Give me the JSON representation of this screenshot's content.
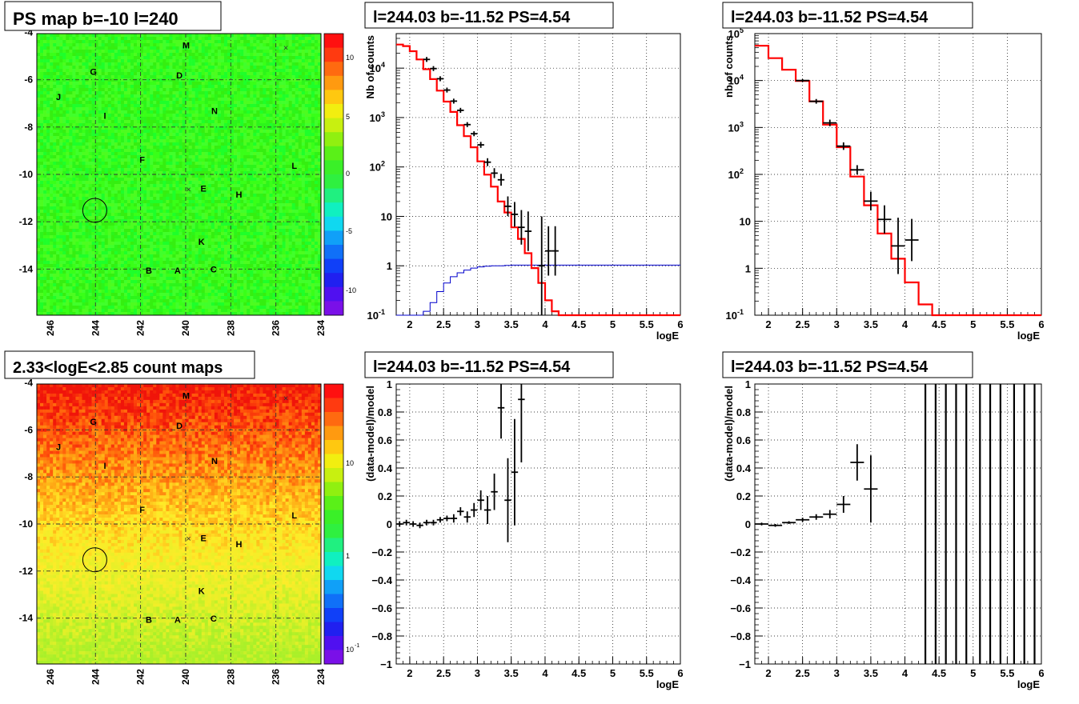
{
  "colors": {
    "red": "#ff0000",
    "blue": "#0000cc",
    "black": "#000000",
    "grid": "#000000"
  },
  "maps": [
    {
      "id": "map1",
      "title": "PS map b=-10 l=240",
      "kind": "ps",
      "yticks": [
        "-4",
        "-6",
        "-8",
        "-10",
        "-12",
        "-14"
      ],
      "xticks": [
        "246",
        "244",
        "242",
        "240",
        "238",
        "236",
        "234"
      ],
      "palette_labels": [
        "10",
        "5",
        "0",
        "-5",
        "-10"
      ],
      "markers": [
        {
          "label": "M",
          "l": 239.98,
          "b": -4.54
        },
        {
          "label": "G",
          "l": 244.09,
          "b": -5.65
        },
        {
          "label": "D",
          "l": 240.28,
          "b": -5.81
        },
        {
          "label": "J",
          "l": 245.64,
          "b": -6.72
        },
        {
          "label": "N",
          "l": 238.72,
          "b": -7.32
        },
        {
          "label": "I",
          "l": 243.58,
          "b": -7.52
        },
        {
          "label": "F",
          "l": 241.93,
          "b": -9.38
        },
        {
          "label": "L",
          "l": 235.18,
          "b": -9.63
        },
        {
          "label": "E",
          "l": 239.21,
          "b": -10.6
        },
        {
          "label": "H",
          "l": 237.64,
          "b": -10.85
        },
        {
          "label": "K",
          "l": 239.3,
          "b": -12.84
        },
        {
          "label": "B",
          "l": 241.63,
          "b": -14.06
        },
        {
          "label": "A",
          "l": 240.36,
          "b": -14.06
        },
        {
          "label": "C",
          "l": 238.76,
          "b": -14.01
        }
      ],
      "crosses": [
        {
          "l": 235.56,
          "b": -4.64
        },
        {
          "l": 239.87,
          "b": -10.62
        }
      ],
      "circle": {
        "l": 244.03,
        "b": -11.52
      }
    },
    {
      "id": "map2",
      "title": "2.33<logE<2.85 count maps",
      "kind": "count",
      "yticks": [
        "-4",
        "-6",
        "-8",
        "-10",
        "-12",
        "-14"
      ],
      "xticks": [
        "246",
        "244",
        "242",
        "240",
        "238",
        "236",
        "234"
      ],
      "palette_labels": [
        "10",
        "1",
        "10",
        "-1"
      ],
      "markers": [
        {
          "label": "M",
          "l": 239.98,
          "b": -4.54
        },
        {
          "label": "G",
          "l": 244.09,
          "b": -5.65
        },
        {
          "label": "D",
          "l": 240.28,
          "b": -5.81
        },
        {
          "label": "J",
          "l": 245.64,
          "b": -6.72
        },
        {
          "label": "N",
          "l": 238.72,
          "b": -7.32
        },
        {
          "label": "I",
          "l": 243.58,
          "b": -7.52
        },
        {
          "label": "F",
          "l": 241.93,
          "b": -9.38
        },
        {
          "label": "L",
          "l": 235.18,
          "b": -9.63
        },
        {
          "label": "E",
          "l": 239.21,
          "b": -10.6
        },
        {
          "label": "H",
          "l": 237.64,
          "b": -10.85
        },
        {
          "label": "K",
          "l": 239.3,
          "b": -12.84
        },
        {
          "label": "B",
          "l": 241.63,
          "b": -14.06
        },
        {
          "label": "A",
          "l": 240.36,
          "b": -14.06
        },
        {
          "label": "C",
          "l": 238.76,
          "b": -14.01
        }
      ],
      "crosses": [
        {
          "l": 235.56,
          "b": -4.64
        },
        {
          "l": 239.87,
          "b": -10.62
        }
      ],
      "circle": {
        "l": 244.03,
        "b": -11.52
      }
    }
  ],
  "chart_data": [
    {
      "type": "line",
      "title": "l=244.03 b=-11.52 PS=4.54",
      "xlabel": "logE",
      "ylabel": "Nb of counts",
      "xlim": [
        1.8,
        6
      ],
      "ylim": [
        0.1,
        50000
      ],
      "yscale": "log",
      "grid": true,
      "xticks": [
        "2",
        "2.5",
        "3",
        "3.5",
        "4",
        "4.5",
        "5",
        "5.5",
        "6"
      ],
      "yticks": [
        {
          "v": 0.1,
          "t": "10",
          "sup": "-1"
        },
        {
          "v": 1,
          "t": "1"
        },
        {
          "v": 10,
          "t": "10"
        },
        {
          "v": 100,
          "t": "10",
          "sup": "2"
        },
        {
          "v": 1000,
          "t": "10",
          "sup": "3"
        },
        {
          "v": 10000,
          "t": "10",
          "sup": "4"
        }
      ],
      "model_step": {
        "edges": [
          1.8,
          1.9,
          2.0,
          2.1,
          2.2,
          2.3,
          2.4,
          2.5,
          2.6,
          2.7,
          2.8,
          2.9,
          3.0,
          3.1,
          3.2,
          3.3,
          3.4,
          3.5,
          3.6,
          3.7,
          3.8,
          3.9,
          4.0,
          4.1,
          4.2,
          6.0
        ],
        "values": [
          30000,
          28000,
          22000,
          15000,
          9500,
          6000,
          3500,
          2100,
          1300,
          700,
          420,
          250,
          130,
          70,
          40,
          20,
          12,
          6,
          3.5,
          1.8,
          0.9,
          0.45,
          0.2,
          0.12,
          0.1
        ]
      },
      "acceptance_step": {
        "edges": [
          1.8,
          2.2,
          2.3,
          2.4,
          2.5,
          2.6,
          2.7,
          2.8,
          2.9,
          3.0,
          3.1,
          3.2,
          3.3,
          3.4,
          3.5,
          6.0
        ],
        "values": [
          0.1,
          0.12,
          0.18,
          0.3,
          0.45,
          0.6,
          0.72,
          0.82,
          0.9,
          0.95,
          0.98,
          1.0,
          1.0,
          1.02,
          1.03
        ]
      },
      "points": [
        {
          "x": 2.25,
          "y": 15000,
          "ex": 0.05,
          "ey": 0.05
        },
        {
          "x": 2.35,
          "y": 9800,
          "ex": 0.05,
          "ey": 0.05
        },
        {
          "x": 2.45,
          "y": 6100,
          "ex": 0.05,
          "ey": 0.05
        },
        {
          "x": 2.55,
          "y": 3600,
          "ex": 0.05,
          "ey": 0.05
        },
        {
          "x": 2.65,
          "y": 2150,
          "ex": 0.05,
          "ey": 0.05
        },
        {
          "x": 2.75,
          "y": 1400,
          "ex": 0.05,
          "ey": 0.05
        },
        {
          "x": 2.85,
          "y": 720,
          "ex": 0.05,
          "ey": 0.05
        },
        {
          "x": 2.95,
          "y": 470,
          "ex": 0.05,
          "ey": 0.05
        },
        {
          "x": 3.05,
          "y": 280,
          "ex": 0.05,
          "ey": 0.06
        },
        {
          "x": 3.15,
          "y": 125,
          "ex": 0.05,
          "ey": 0.08
        },
        {
          "x": 3.25,
          "y": 75,
          "ex": 0.05,
          "ey": 0.1
        },
        {
          "x": 3.35,
          "y": 55,
          "ex": 0.05,
          "ey": 0.12
        },
        {
          "x": 3.45,
          "y": 16,
          "ex": 0.05,
          "ey": 0.2
        },
        {
          "x": 3.55,
          "y": 11,
          "ex": 0.05,
          "ey": 0.25
        },
        {
          "x": 3.65,
          "y": 6,
          "ex": 0.05,
          "ey": 0.35
        },
        {
          "x": 3.75,
          "y": 5,
          "ex": 0.05,
          "ey": 0.4
        },
        {
          "x": 3.95,
          "y": 1,
          "ex": 0.05,
          "ey": 1.0
        },
        {
          "x": 4.05,
          "y": 2,
          "ex": 0.05,
          "ey": 0.5
        },
        {
          "x": 4.15,
          "y": 2,
          "ex": 0.05,
          "ey": 0.5
        }
      ]
    },
    {
      "type": "line",
      "title": "l=244.03 b=-11.52 PS=4.54",
      "xlabel": "logE",
      "ylabel": "nb of counts",
      "xlim": [
        1.8,
        6
      ],
      "ylim": [
        0.1,
        100000
      ],
      "yscale": "log",
      "grid": true,
      "xticks": [
        "2",
        "2.5",
        "3",
        "3.5",
        "4",
        "4.5",
        "5",
        "5.5",
        "6"
      ],
      "yticks": [
        {
          "v": 0.1,
          "t": "10",
          "sup": "-1"
        },
        {
          "v": 1,
          "t": "1"
        },
        {
          "v": 10,
          "t": "10"
        },
        {
          "v": 100,
          "t": "10",
          "sup": "2"
        },
        {
          "v": 1000,
          "t": "10",
          "sup": "3"
        },
        {
          "v": 10000,
          "t": "10",
          "sup": "4"
        },
        {
          "v": 100000,
          "t": "10",
          "sup": "5"
        }
      ],
      "model_step": {
        "edges": [
          1.8,
          2.0,
          2.2,
          2.4,
          2.6,
          2.8,
          3.0,
          3.2,
          3.4,
          3.6,
          3.8,
          4.0,
          4.2,
          4.4,
          4.6,
          6.0
        ],
        "values": [
          55000,
          30000,
          17000,
          9800,
          3600,
          1150,
          380,
          90,
          22,
          5.5,
          1.6,
          0.5,
          0.17,
          0.1,
          0.1
        ]
      },
      "points": [
        {
          "x": 2.5,
          "y": 10000,
          "ex": 0.1,
          "ey": 0.03
        },
        {
          "x": 2.7,
          "y": 3600,
          "ex": 0.1,
          "ey": 0.05
        },
        {
          "x": 2.9,
          "y": 1250,
          "ex": 0.1,
          "ey": 0.07
        },
        {
          "x": 3.1,
          "y": 400,
          "ex": 0.1,
          "ey": 0.08
        },
        {
          "x": 3.3,
          "y": 125,
          "ex": 0.1,
          "ey": 0.1
        },
        {
          "x": 3.5,
          "y": 27,
          "ex": 0.1,
          "ey": 0.2
        },
        {
          "x": 3.7,
          "y": 11,
          "ex": 0.1,
          "ey": 0.3
        },
        {
          "x": 3.9,
          "y": 3,
          "ex": 0.1,
          "ey": 0.6
        },
        {
          "x": 4.1,
          "y": 4,
          "ex": 0.1,
          "ey": 0.45
        }
      ]
    },
    {
      "type": "scatter",
      "title": "l=244.03 b=-11.52 PS=4.54",
      "xlabel": "logE",
      "ylabel": "(data-model)/model",
      "xlim": [
        1.8,
        6
      ],
      "ylim": [
        -1,
        1
      ],
      "yscale": "linear",
      "grid": true,
      "xticks": [
        "2",
        "2.5",
        "3",
        "3.5",
        "4",
        "4.5",
        "5",
        "5.5",
        "6"
      ],
      "yticks": [
        {
          "v": -1,
          "t": "−1"
        },
        {
          "v": -0.8,
          "t": "−0.8"
        },
        {
          "v": -0.6,
          "t": "−0.6"
        },
        {
          "v": -0.4,
          "t": "−0.4"
        },
        {
          "v": -0.2,
          "t": "−0.2"
        },
        {
          "v": 0,
          "t": "0"
        },
        {
          "v": 0.2,
          "t": "0.2"
        },
        {
          "v": 0.4,
          "t": "0.4"
        },
        {
          "v": 0.6,
          "t": "0.6"
        },
        {
          "v": 0.8,
          "t": "0.8"
        },
        {
          "v": 1,
          "t": "1"
        }
      ],
      "points": [
        {
          "x": 1.85,
          "y": 0,
          "ex": 0.05,
          "ey": 0.02
        },
        {
          "x": 1.95,
          "y": 0.01,
          "ex": 0.05,
          "ey": 0.02
        },
        {
          "x": 2.05,
          "y": 0,
          "ex": 0.05,
          "ey": 0.02
        },
        {
          "x": 2.15,
          "y": -0.01,
          "ex": 0.05,
          "ey": 0.02
        },
        {
          "x": 2.25,
          "y": 0.01,
          "ex": 0.05,
          "ey": 0.02
        },
        {
          "x": 2.35,
          "y": 0.01,
          "ex": 0.05,
          "ey": 0.02
        },
        {
          "x": 2.45,
          "y": 0.03,
          "ex": 0.05,
          "ey": 0.02
        },
        {
          "x": 2.55,
          "y": 0.04,
          "ex": 0.05,
          "ey": 0.02
        },
        {
          "x": 2.65,
          "y": 0.04,
          "ex": 0.05,
          "ey": 0.03
        },
        {
          "x": 2.75,
          "y": 0.09,
          "ex": 0.05,
          "ey": 0.03
        },
        {
          "x": 2.85,
          "y": 0.05,
          "ex": 0.05,
          "ey": 0.04
        },
        {
          "x": 2.95,
          "y": 0.1,
          "ex": 0.05,
          "ey": 0.05
        },
        {
          "x": 3.05,
          "y": 0.17,
          "ex": 0.05,
          "ey": 0.07
        },
        {
          "x": 3.15,
          "y": 0.1,
          "ex": 0.05,
          "ey": 0.1
        },
        {
          "x": 3.25,
          "y": 0.23,
          "ex": 0.05,
          "ey": 0.13
        },
        {
          "x": 3.35,
          "y": 0.83,
          "ex": 0.05,
          "ey": 0.22
        },
        {
          "x": 3.45,
          "y": 0.17,
          "ex": 0.05,
          "ey": 0.3
        },
        {
          "x": 3.55,
          "y": 0.37,
          "ex": 0.05,
          "ey": 0.38
        },
        {
          "x": 3.65,
          "y": 0.89,
          "ex": 0.05,
          "ey": 0.45
        }
      ]
    },
    {
      "type": "scatter",
      "title": "l=244.03 b=-11.52 PS=4.54",
      "xlabel": "logE",
      "ylabel": "(data-model)/model",
      "xlim": [
        1.8,
        6
      ],
      "ylim": [
        -1,
        1
      ],
      "yscale": "linear",
      "grid": true,
      "xticks": [
        "2",
        "2.5",
        "3",
        "3.5",
        "4",
        "4.5",
        "5",
        "5.5",
        "6"
      ],
      "yticks": [
        {
          "v": -1,
          "t": "−1"
        },
        {
          "v": -0.8,
          "t": "−0.8"
        },
        {
          "v": -0.6,
          "t": "−0.6"
        },
        {
          "v": -0.4,
          "t": "−0.4"
        },
        {
          "v": -0.2,
          "t": "−0.2"
        },
        {
          "v": 0,
          "t": "0"
        },
        {
          "v": 0.2,
          "t": "0.2"
        },
        {
          "v": 0.4,
          "t": "0.4"
        },
        {
          "v": 0.6,
          "t": "0.6"
        },
        {
          "v": 0.8,
          "t": "0.8"
        },
        {
          "v": 1,
          "t": "1"
        }
      ],
      "points": [
        {
          "x": 1.9,
          "y": 0,
          "ex": 0.1,
          "ey": 0.01
        },
        {
          "x": 2.1,
          "y": -0.01,
          "ex": 0.1,
          "ey": 0.01
        },
        {
          "x": 2.3,
          "y": 0.01,
          "ex": 0.1,
          "ey": 0.01
        },
        {
          "x": 2.5,
          "y": 0.03,
          "ex": 0.1,
          "ey": 0.015
        },
        {
          "x": 2.7,
          "y": 0.05,
          "ex": 0.1,
          "ey": 0.02
        },
        {
          "x": 2.9,
          "y": 0.07,
          "ex": 0.1,
          "ey": 0.03
        },
        {
          "x": 3.1,
          "y": 0.14,
          "ex": 0.1,
          "ey": 0.06
        },
        {
          "x": 3.3,
          "y": 0.44,
          "ex": 0.1,
          "ey": 0.13
        },
        {
          "x": 3.5,
          "y": 0.25,
          "ex": 0.1,
          "ey": 0.24
        }
      ],
      "full_bars_x": [
        4.3,
        4.45,
        4.6,
        4.75,
        4.9,
        5.1,
        5.25,
        5.4,
        5.6,
        5.75,
        5.9
      ]
    }
  ]
}
